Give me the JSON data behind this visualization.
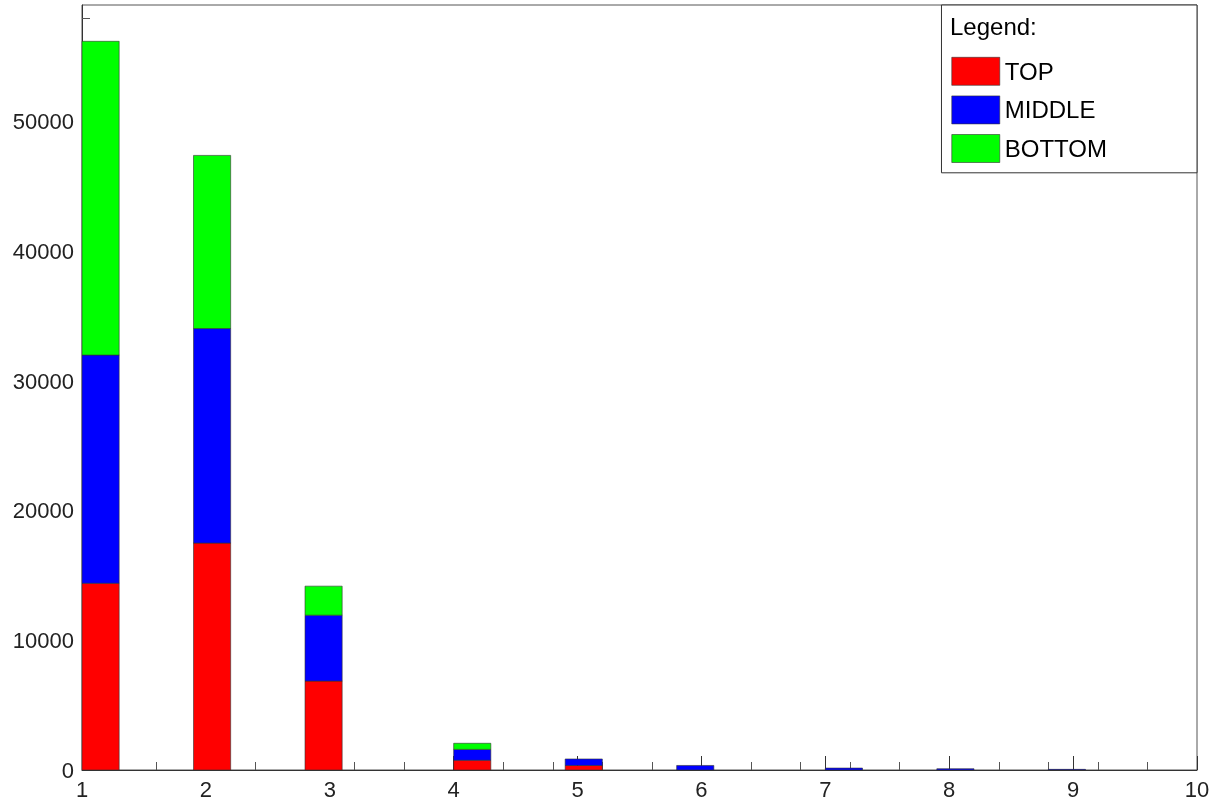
{
  "chart_data": {
    "type": "bar",
    "stacked": true,
    "legend": "top right",
    "legend_title": "Legend:",
    "x": [
      1.15,
      2.05,
      2.95,
      4.15,
      5.05,
      5.95,
      7.15,
      8.05,
      8.95
    ],
    "series": [
      {
        "name": "TOP",
        "color": "#ff0000",
        "values": [
          14400,
          17500,
          6860,
          750,
          350,
          null,
          0,
          0,
          0
        ]
      },
      {
        "name": "MIDDLE",
        "color": "#0000ff",
        "values": [
          17600,
          16550,
          5080,
          840,
          500,
          350,
          150,
          100,
          50
        ]
      },
      {
        "name": "BOTTOM",
        "color": "#00ff00",
        "values": [
          24200,
          13350,
          2240,
          470,
          0,
          0,
          0,
          0,
          0
        ]
      }
    ],
    "xlim": [
      1,
      10
    ],
    "xticks": [
      1,
      2,
      3,
      4,
      5,
      6,
      7,
      8,
      9,
      10
    ],
    "ylim": [
      0,
      59000
    ],
    "yticks": [
      0,
      10000,
      20000,
      30000,
      40000,
      50000
    ]
  }
}
